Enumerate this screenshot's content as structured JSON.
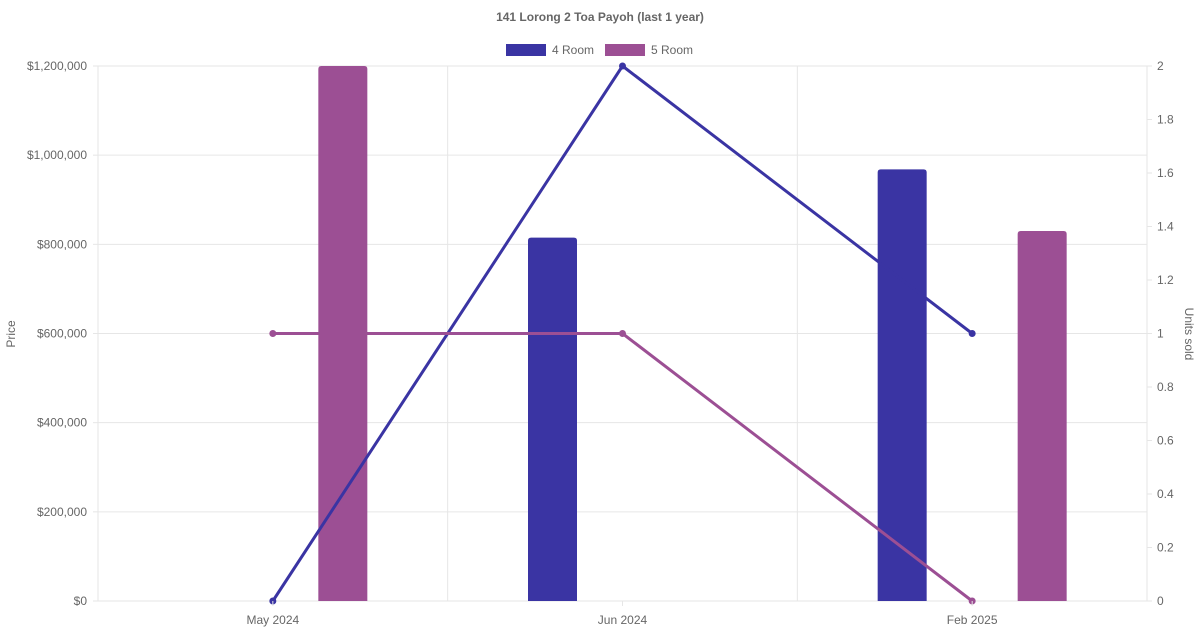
{
  "chart_data": {
    "type": "bar",
    "title": "141 Lorong 2 Toa Payoh (last 1 year)",
    "categories": [
      "May 2024",
      "Jun 2024",
      "Feb 2025"
    ],
    "y_left": {
      "label": "Price",
      "range": [
        0,
        1200000
      ],
      "ticks": [
        "$0",
        "$200,000",
        "$400,000",
        "$600,000",
        "$800,000",
        "$1,000,000",
        "$1,200,000"
      ]
    },
    "y_right": {
      "label": "Units sold",
      "range": [
        0,
        2
      ],
      "ticks": [
        "0",
        "0.2",
        "0.4",
        "0.6",
        "0.8",
        "1",
        "1.2",
        "1.4",
        "1.6",
        "1.8",
        "2"
      ]
    },
    "grid": true,
    "legend_position": "top-center",
    "series": [
      {
        "name": "4 Room",
        "color": "#3a34a3",
        "price": [
          null,
          815000,
          968000
        ],
        "units": [
          0,
          2,
          1
        ]
      },
      {
        "name": "5 Room",
        "color": "#9c4f94",
        "price": [
          1200000,
          null,
          830000
        ],
        "units": [
          1,
          1,
          0
        ]
      }
    ]
  }
}
